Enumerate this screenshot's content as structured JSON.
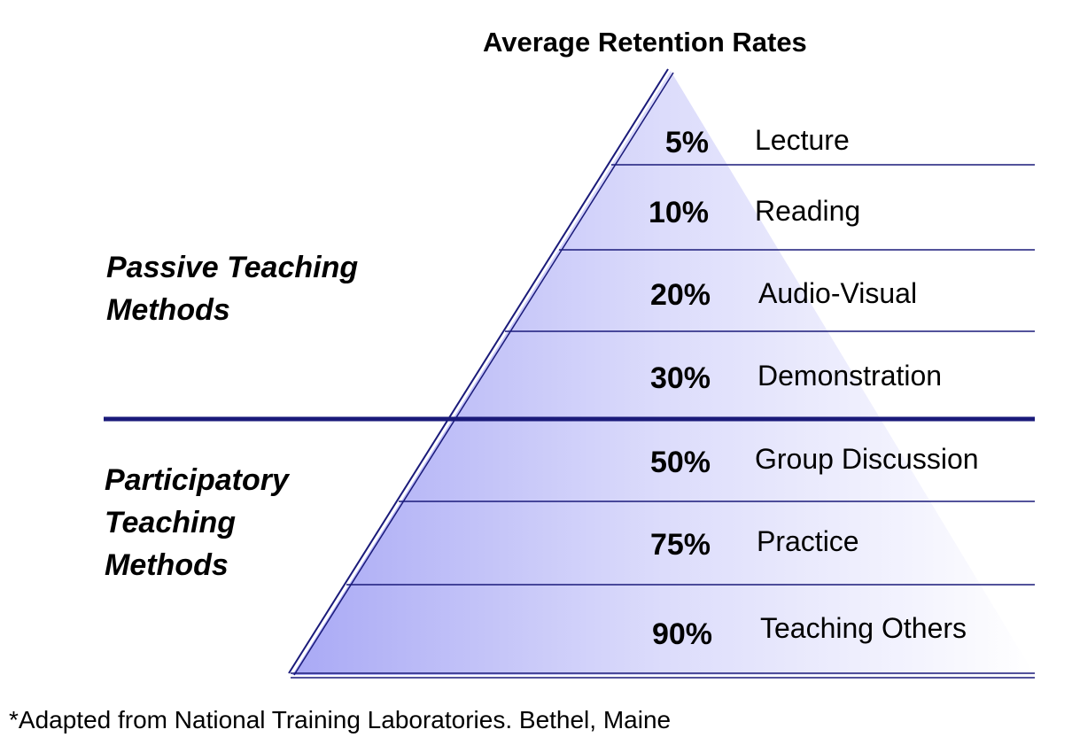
{
  "title": "Average Retention Rates",
  "groups": {
    "passive": {
      "line1": "Passive Teaching",
      "line2": "Methods"
    },
    "participatory": {
      "line1": "Participatory",
      "line2": "Teaching",
      "line3": "Methods"
    }
  },
  "levels": [
    {
      "percent": "5%",
      "method": "Lecture"
    },
    {
      "percent": "10%",
      "method": "Reading"
    },
    {
      "percent": "20%",
      "method": "Audio-Visual"
    },
    {
      "percent": "30%",
      "method": "Demonstration"
    },
    {
      "percent": "50%",
      "method": "Group Discussion"
    },
    {
      "percent": "75%",
      "method": "Practice"
    },
    {
      "percent": "90%",
      "method": "Teaching Others"
    }
  ],
  "footnote": "*Adapted from National Training Laboratories. Bethel, Maine",
  "colors": {
    "line": "#1a1a7a",
    "fill_dark": "#a9a9f5",
    "fill_light": "#ffffff"
  }
}
